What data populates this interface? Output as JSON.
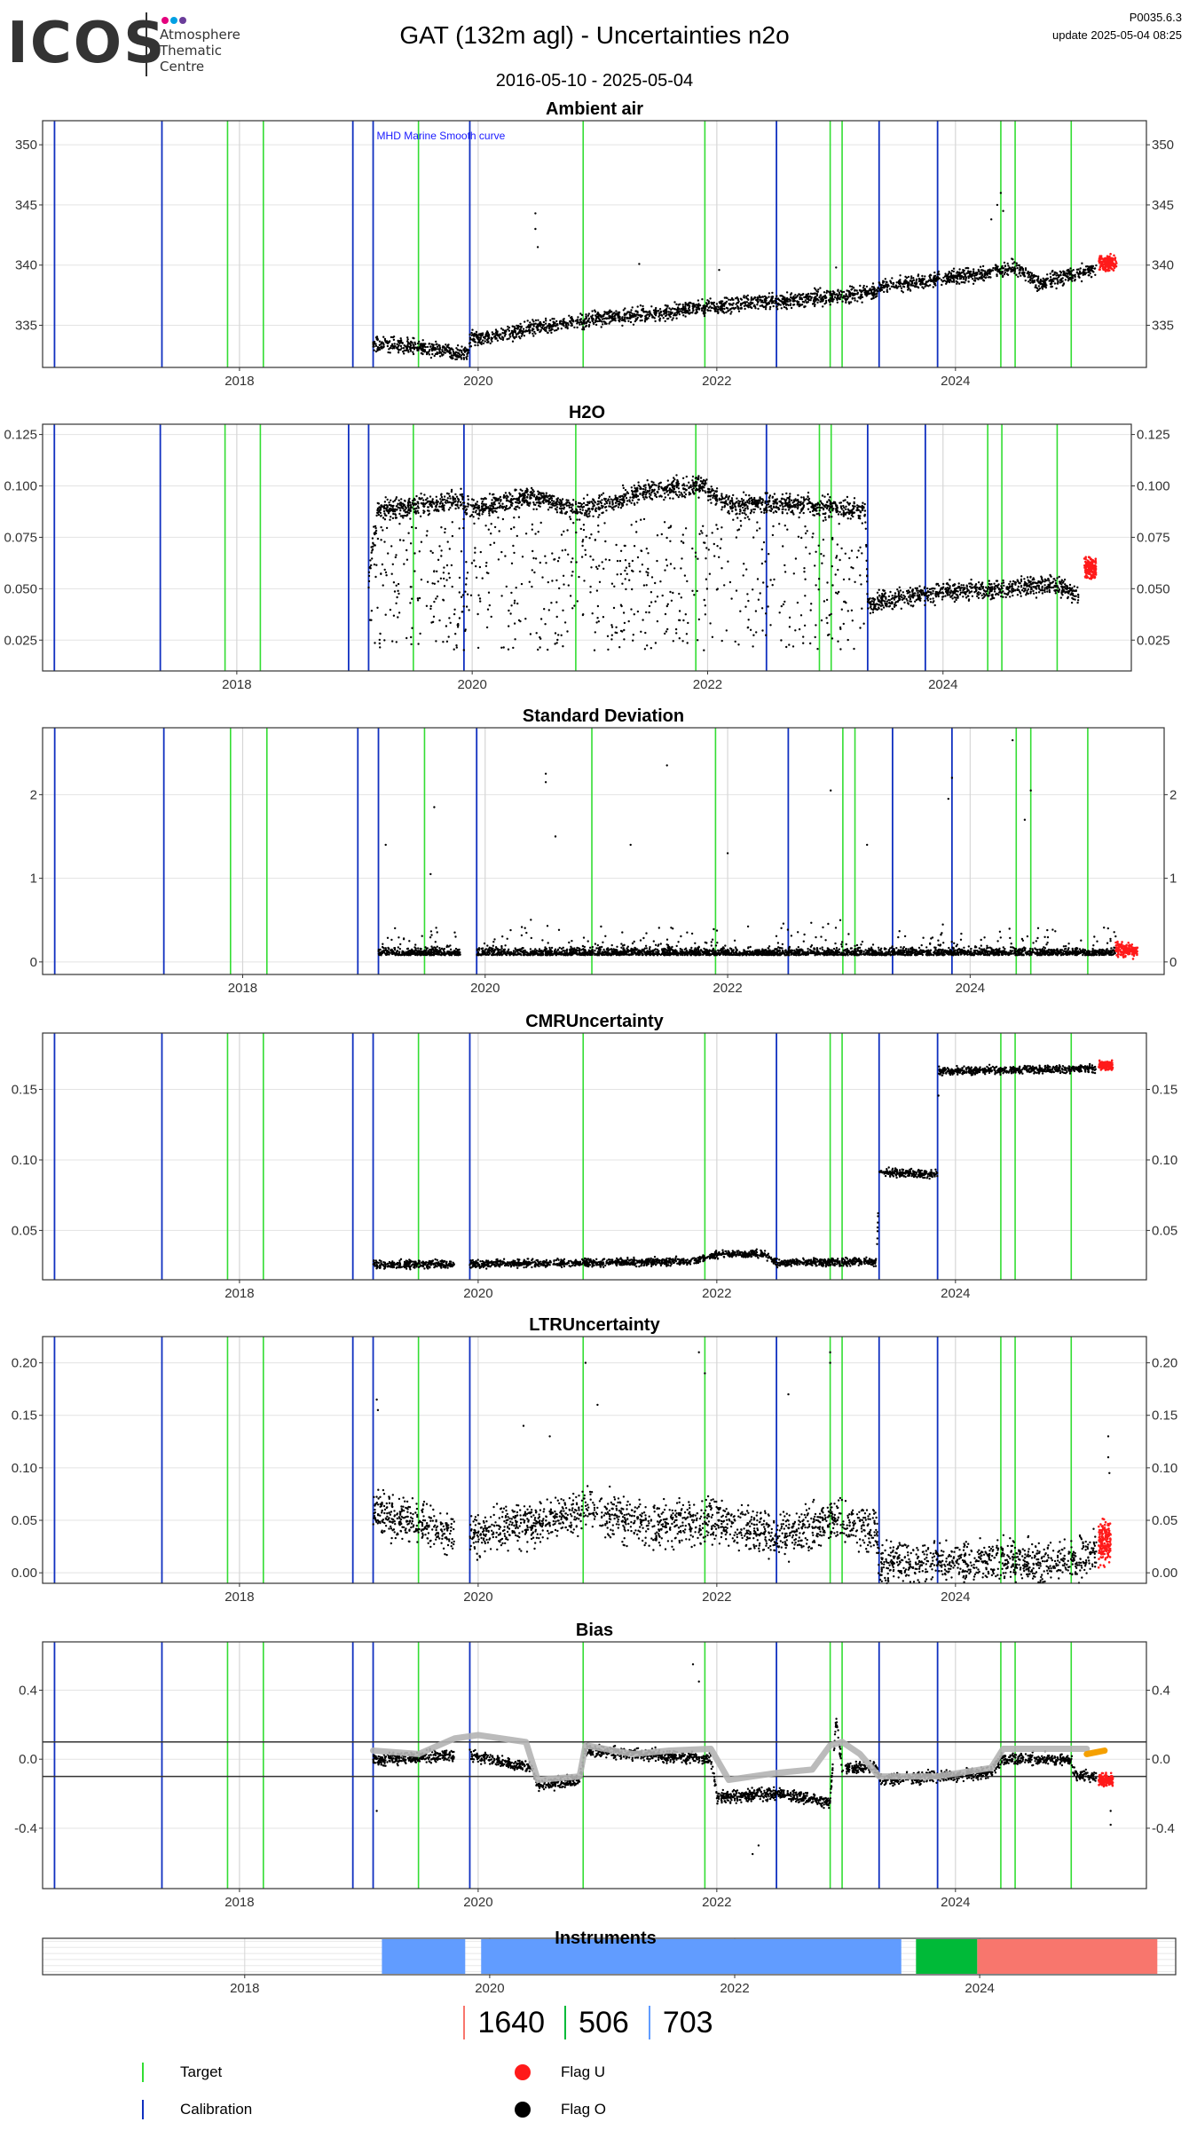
{
  "header": {
    "logo_word": "ICOS",
    "logo_lines": [
      "Atmosphere",
      "Thematic",
      "Centre"
    ],
    "logo_dot_colors": [
      "#e4007d",
      "#00a0e3",
      "#6a3d9a"
    ],
    "title": "GAT  (132m agl) - Uncertainties n2o",
    "subtitle": "2016-05-10 - 2025-05-04",
    "version": "P0035.6.3",
    "update": "update  2025-05-04 08:25"
  },
  "colors": {
    "target": "#33dd33",
    "calibration": "#1030c0",
    "flag_u": "#ff1a1a",
    "flag_o": "#000000",
    "smooth": "#b4b4b4",
    "bias_tail": "#f5a000",
    "grid": "#e3e3e3"
  },
  "x_range": [
    2016.35,
    2025.6
  ],
  "x_ticks": [
    2018,
    2020,
    2022,
    2024
  ],
  "x_tick_labels": [
    "2018",
    "2020",
    "2022",
    "2024"
  ],
  "events": {
    "target": [
      2017.9,
      2018.2,
      2019.5,
      2020.88,
      2021.9,
      2022.95,
      2023.05,
      2024.38,
      2024.5,
      2024.97
    ],
    "calibration": [
      2016.45,
      2017.35,
      2018.95,
      2019.12,
      2019.93,
      2022.5,
      2023.36,
      2023.85
    ]
  },
  "chart_data": [
    {
      "type": "scatter",
      "title": "Ambient air",
      "annotation": "MHD Marine Smooth curve",
      "ylim": [
        331.5,
        352
      ],
      "y_ticks": [
        335,
        340,
        345,
        350
      ],
      "y_tick_labels": [
        "335",
        "340",
        "345",
        "350"
      ],
      "trend": [
        [
          2019.12,
          333.5
        ],
        [
          2019.7,
          333.0
        ],
        [
          2019.92,
          332.6
        ],
        [
          2019.93,
          333.8
        ],
        [
          2020.5,
          334.8
        ],
        [
          2021.0,
          335.5
        ],
        [
          2021.5,
          336.0
        ],
        [
          2022.0,
          336.6
        ],
        [
          2022.5,
          337.0
        ],
        [
          2023.0,
          337.4
        ],
        [
          2023.34,
          337.8
        ],
        [
          2023.36,
          338.2
        ],
        [
          2023.85,
          338.8
        ],
        [
          2024.3,
          339.4
        ],
        [
          2024.5,
          339.8
        ],
        [
          2024.7,
          338.5
        ],
        [
          2025.0,
          339.3
        ],
        [
          2025.18,
          339.8
        ]
      ],
      "spread": 0.9,
      "flag_u_segment": [
        2025.2,
        2025.35
      ],
      "flag_u_level": 340.2,
      "outliers": [
        [
          2020.48,
          344.3
        ],
        [
          2020.48,
          343.0
        ],
        [
          2020.5,
          341.5
        ],
        [
          2024.35,
          345.0
        ],
        [
          2024.38,
          346.0
        ],
        [
          2024.4,
          344.5
        ],
        [
          2024.3,
          343.8
        ],
        [
          2022.02,
          339.6
        ],
        [
          2023.0,
          339.8
        ],
        [
          2021.35,
          340.1
        ]
      ]
    },
    {
      "type": "scatter",
      "title": "H2O",
      "ylim": [
        0.01,
        0.13
      ],
      "y_ticks": [
        0.025,
        0.05,
        0.075,
        0.1,
        0.125
      ],
      "y_tick_labels": [
        "0.025",
        "0.050",
        "0.075",
        "0.100",
        "0.125"
      ],
      "trend": [
        [
          2019.12,
          0.055
        ],
        [
          2019.2,
          0.088
        ],
        [
          2019.92,
          0.093
        ],
        [
          2019.93,
          0.088
        ],
        [
          2020.5,
          0.095
        ],
        [
          2020.9,
          0.088
        ],
        [
          2021.5,
          0.098
        ],
        [
          2021.95,
          0.1
        ],
        [
          2022.2,
          0.09
        ],
        [
          2022.5,
          0.092
        ],
        [
          2023.0,
          0.09
        ],
        [
          2023.34,
          0.088
        ],
        [
          2023.36,
          0.042
        ],
        [
          2023.85,
          0.048
        ],
        [
          2024.5,
          0.05
        ],
        [
          2024.97,
          0.052
        ],
        [
          2025.15,
          0.046
        ]
      ],
      "spread": 0.007,
      "sparse_band": [
        0.02,
        0.085
      ],
      "sparse_range": [
        2019.12,
        2023.34
      ],
      "flag_u_segment": [
        2025.2,
        2025.3
      ],
      "flag_u_level": 0.06
    },
    {
      "type": "scatter",
      "title": "Standard Deviation",
      "ylim": [
        -0.15,
        2.8
      ],
      "y_ticks": [
        0,
        1,
        2
      ],
      "y_tick_labels": [
        "0",
        "1",
        "2"
      ],
      "base_level": 0.08,
      "spread": 0.12,
      "gaps": [
        [
          2019.8,
          2019.93
        ]
      ],
      "data_range": [
        2019.12,
        2025.2
      ],
      "flag_u_segment": [
        2025.2,
        2025.38
      ],
      "flag_u_level": 0.15,
      "outliers": [
        [
          2019.18,
          1.4
        ],
        [
          2019.58,
          1.85
        ],
        [
          2019.55,
          1.05
        ],
        [
          2020.5,
          2.25
        ],
        [
          2020.5,
          2.15
        ],
        [
          2021.5,
          2.35
        ],
        [
          2022.85,
          2.05
        ],
        [
          2023.85,
          2.2
        ],
        [
          2024.35,
          2.65
        ],
        [
          2024.5,
          2.05
        ],
        [
          2024.45,
          1.7
        ],
        [
          2023.82,
          1.95
        ],
        [
          2021.2,
          1.4
        ],
        [
          2020.58,
          1.5
        ],
        [
          2022.0,
          1.3
        ],
        [
          2023.15,
          1.4
        ]
      ]
    },
    {
      "type": "scatter",
      "title": "CMRUncertainty",
      "ylim": [
        0.015,
        0.19
      ],
      "y_ticks": [
        0.05,
        0.1,
        0.15
      ],
      "y_tick_labels": [
        "0.05",
        "0.10",
        "0.15"
      ],
      "trend": [
        [
          2019.12,
          0.026
        ],
        [
          2019.8,
          0.026
        ],
        [
          2019.93,
          0.026
        ],
        [
          2021.8,
          0.028
        ],
        [
          2022.0,
          0.033
        ],
        [
          2022.4,
          0.033
        ],
        [
          2022.5,
          0.027
        ],
        [
          2023.34,
          0.028
        ],
        [
          2023.36,
          0.091
        ],
        [
          2023.85,
          0.09
        ],
        [
          2023.86,
          0.163
        ],
        [
          2025.18,
          0.165
        ]
      ],
      "spread": 0.004,
      "gaps": [
        [
          2019.8,
          2019.93
        ]
      ],
      "flag_u_segment": [
        2025.2,
        2025.32
      ],
      "flag_u_level": 0.167
    },
    {
      "type": "scatter",
      "title": "LTRUncertainty",
      "ylim": [
        -0.01,
        0.225
      ],
      "y_ticks": [
        0,
        0.05,
        0.1,
        0.15,
        0.2
      ],
      "y_tick_labels": [
        "0.00",
        "0.05",
        "0.10",
        "0.15",
        "0.20"
      ],
      "trend": [
        [
          2019.12,
          0.06
        ],
        [
          2019.8,
          0.035
        ],
        [
          2019.93,
          0.035
        ],
        [
          2020.9,
          0.06
        ],
        [
          2021.5,
          0.045
        ],
        [
          2022.0,
          0.05
        ],
        [
          2022.5,
          0.035
        ],
        [
          2023.0,
          0.05
        ],
        [
          2023.34,
          0.04
        ],
        [
          2023.36,
          0.008
        ],
        [
          2024.97,
          0.012
        ],
        [
          2025.18,
          0.02
        ]
      ],
      "spread": 0.03,
      "gaps": [
        [
          2019.8,
          2019.93
        ]
      ],
      "flag_u_segment": [
        2025.2,
        2025.3
      ],
      "flag_u_level": 0.03,
      "outliers": [
        [
          2019.15,
          0.165
        ],
        [
          2019.16,
          0.155
        ],
        [
          2020.38,
          0.14
        ],
        [
          2020.9,
          0.2
        ],
        [
          2021.0,
          0.16
        ],
        [
          2021.85,
          0.21
        ],
        [
          2021.9,
          0.19
        ],
        [
          2022.6,
          0.17
        ],
        [
          2022.95,
          0.21
        ],
        [
          2022.95,
          0.2
        ],
        [
          2020.6,
          0.13
        ],
        [
          2025.28,
          0.13
        ],
        [
          2025.28,
          0.11
        ],
        [
          2025.29,
          0.095
        ]
      ]
    },
    {
      "type": "scatter",
      "title": "Bias",
      "ylim": [
        -0.75,
        0.68
      ],
      "y_ticks": [
        -0.4,
        0.0,
        0.4
      ],
      "y_tick_labels": [
        "-0.4",
        "0.0",
        "0.4"
      ],
      "hlines": [
        0.1,
        -0.1
      ],
      "trend": [
        [
          2019.12,
          0.0
        ],
        [
          2019.8,
          0.02
        ],
        [
          2019.93,
          0.02
        ],
        [
          2020.45,
          -0.05
        ],
        [
          2020.5,
          -0.15
        ],
        [
          2020.85,
          -0.12
        ],
        [
          2020.9,
          0.05
        ],
        [
          2021.95,
          0.0
        ],
        [
          2022.0,
          -0.22
        ],
        [
          2022.5,
          -0.2
        ],
        [
          2022.95,
          -0.25
        ],
        [
          2023.0,
          0.22
        ],
        [
          2023.05,
          -0.05
        ],
        [
          2023.34,
          -0.05
        ],
        [
          2023.36,
          -0.12
        ],
        [
          2023.85,
          -0.1
        ],
        [
          2024.3,
          -0.08
        ],
        [
          2024.38,
          0.0
        ],
        [
          2024.97,
          0.0
        ],
        [
          2025.0,
          -0.09
        ],
        [
          2025.18,
          -0.1
        ]
      ],
      "spread": 0.05,
      "gaps": [
        [
          2019.8,
          2019.93
        ]
      ],
      "smooth": [
        [
          2019.12,
          0.05
        ],
        [
          2019.5,
          0.03
        ],
        [
          2019.8,
          0.12
        ],
        [
          2020.0,
          0.14
        ],
        [
          2020.4,
          0.1
        ],
        [
          2020.5,
          -0.12
        ],
        [
          2020.85,
          -0.1
        ],
        [
          2020.9,
          0.08
        ],
        [
          2021.3,
          0.03
        ],
        [
          2021.6,
          0.05
        ],
        [
          2021.95,
          0.06
        ],
        [
          2022.1,
          -0.12
        ],
        [
          2022.5,
          -0.08
        ],
        [
          2022.8,
          -0.06
        ],
        [
          2022.95,
          0.08
        ],
        [
          2023.05,
          0.1
        ],
        [
          2023.2,
          0.03
        ],
        [
          2023.36,
          -0.1
        ],
        [
          2023.85,
          -0.1
        ],
        [
          2024.3,
          -0.05
        ],
        [
          2024.4,
          0.06
        ],
        [
          2024.97,
          0.06
        ],
        [
          2025.1,
          0.06
        ]
      ],
      "bias_tail": [
        [
          2025.1,
          0.03
        ],
        [
          2025.25,
          0.05
        ]
      ],
      "flag_u_segment": [
        2025.2,
        2025.32
      ],
      "flag_u_level": -0.12,
      "outliers": [
        [
          2019.15,
          -0.3
        ],
        [
          2021.8,
          0.55
        ],
        [
          2021.85,
          0.45
        ],
        [
          2022.3,
          -0.55
        ],
        [
          2022.35,
          -0.5
        ],
        [
          2025.3,
          -0.38
        ],
        [
          2025.3,
          -0.3
        ]
      ]
    }
  ],
  "instruments": {
    "title": "Instruments",
    "segments": [
      {
        "start": 2019.12,
        "end": 2019.8,
        "color": "#619cff"
      },
      {
        "start": 2019.93,
        "end": 2023.36,
        "color": "#619cff"
      },
      {
        "start": 2023.48,
        "end": 2023.98,
        "color": "#00ba38"
      },
      {
        "start": 2023.98,
        "end": 2025.45,
        "color": "#f8766d"
      }
    ]
  },
  "instrument_counts": [
    {
      "label": "1640",
      "color": "#f8766d"
    },
    {
      "label": "506",
      "color": "#00ba38"
    },
    {
      "label": "703",
      "color": "#619cff"
    }
  ],
  "legend": {
    "target": "Target",
    "calibration": "Calibration",
    "flag_u": "Flag U",
    "flag_o": "Flag O"
  }
}
